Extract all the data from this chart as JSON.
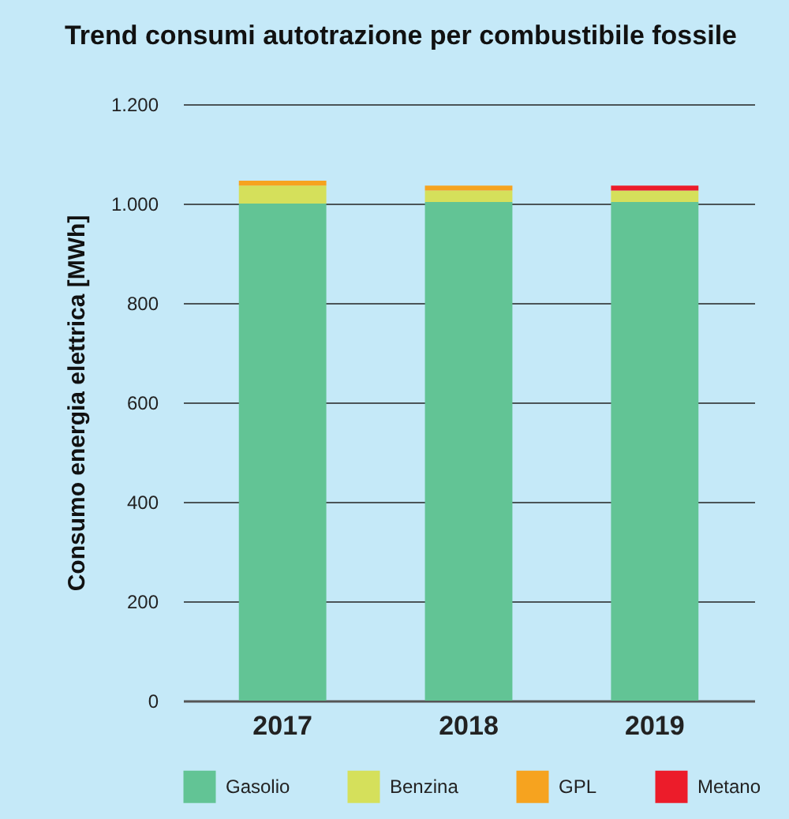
{
  "chart_data": {
    "type": "bar",
    "title": "Trend consumi autotrazione per combustibile fossile",
    "ylabel": "Consumo energia elettrica [MWh]",
    "categories": [
      "2017",
      "2018",
      "2019"
    ],
    "stacked": true,
    "series": [
      {
        "name": "Gasolio",
        "color": "#62c495",
        "values": [
          1000,
          1003,
          1003
        ]
      },
      {
        "name": "Benzina",
        "color": "#d5e05b",
        "values": [
          36,
          23,
          23
        ]
      },
      {
        "name": "GPL",
        "color": "#f6a31f",
        "values": [
          10,
          10,
          0
        ]
      },
      {
        "name": "Metano",
        "color": "#ec1c2a",
        "values": [
          0,
          0,
          10
        ]
      }
    ],
    "ylim": [
      0,
      1200
    ],
    "yticks": [
      {
        "value": 0,
        "label": "0"
      },
      {
        "value": 200,
        "label": "200"
      },
      {
        "value": 400,
        "label": "400"
      },
      {
        "value": 600,
        "label": "600"
      },
      {
        "value": 800,
        "label": "800"
      },
      {
        "value": 1000,
        "label": "1.000"
      },
      {
        "value": 1200,
        "label": "1.200"
      }
    ],
    "grid": "y",
    "legend": "bottom"
  }
}
